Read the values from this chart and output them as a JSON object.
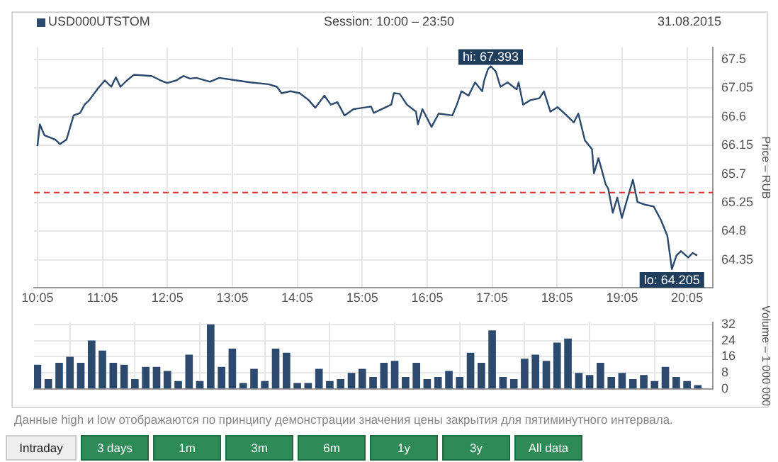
{
  "chart_data": [
    {
      "type": "line",
      "title": "USD000UTSTOM",
      "subtitle": "Session: 10:00 – 23:50",
      "ylabel": "Price – RUB",
      "color": "#2c4a6e",
      "marker": "none",
      "line_style": "solid",
      "grid": true,
      "x": [
        10.083,
        10.12,
        10.19,
        10.36,
        10.43,
        10.53,
        10.64,
        10.74,
        10.81,
        10.88,
        11.01,
        11.12,
        11.22,
        11.29,
        11.36,
        11.46,
        11.57,
        11.84,
        11.98,
        12.08,
        12.22,
        12.33,
        12.43,
        12.53,
        12.74,
        12.88,
        13.15,
        13.36,
        13.64,
        13.77,
        13.84,
        13.98,
        14.12,
        14.26,
        14.36,
        14.5,
        14.6,
        14.7,
        14.81,
        14.95,
        15.22,
        15.26,
        15.53,
        15.57,
        15.66,
        15.77,
        15.91,
        15.94,
        16.01,
        16.15,
        16.26,
        16.47,
        16.54,
        16.61,
        16.72,
        16.82,
        16.93,
        16.96,
        17.02,
        17.06,
        17.14,
        17.21,
        17.32,
        17.46,
        17.49,
        17.56,
        17.67,
        17.81,
        17.88,
        17.98,
        18.09,
        18.23,
        18.34,
        18.41,
        18.51,
        18.62,
        18.65,
        18.72,
        18.83,
        18.87,
        18.94,
        19.01,
        19.08,
        19.15,
        19.25,
        19.32,
        19.43,
        19.57,
        19.68,
        19.78,
        19.85,
        19.92,
        19.99,
        20.1,
        20.17,
        20.24
      ],
      "values": [
        66.14,
        66.48,
        66.31,
        66.24,
        66.17,
        66.24,
        66.62,
        66.66,
        66.79,
        66.86,
        67.04,
        67.17,
        67.07,
        67.22,
        67.07,
        67.17,
        67.26,
        67.24,
        67.17,
        67.13,
        67.17,
        67.24,
        67.2,
        67.21,
        67.15,
        67.21,
        67.17,
        67.14,
        67.11,
        67.07,
        66.97,
        67.0,
        66.97,
        66.86,
        66.74,
        66.93,
        66.79,
        66.83,
        66.62,
        66.72,
        66.76,
        66.66,
        66.79,
        66.97,
        66.96,
        66.79,
        66.68,
        66.48,
        66.72,
        66.44,
        66.65,
        66.62,
        66.79,
        67.0,
        66.93,
        67.14,
        67.0,
        67.17,
        67.35,
        67.393,
        67.31,
        67.07,
        67.14,
        67.03,
        67.14,
        66.79,
        66.86,
        66.89,
        67.0,
        66.68,
        66.75,
        66.62,
        66.51,
        66.65,
        66.23,
        66.09,
        65.71,
        65.95,
        65.54,
        65.47,
        65.09,
        65.33,
        65.01,
        65.26,
        65.61,
        65.26,
        65.22,
        65.19,
        64.98,
        64.73,
        64.205,
        64.42,
        64.49,
        64.39,
        64.46,
        64.42
      ],
      "xlim": [
        10.03,
        20.48
      ],
      "xticks": [
        {
          "value": 10.0833,
          "label": "10:05"
        },
        {
          "value": 11.0833,
          "label": "11:05"
        },
        {
          "value": 12.0833,
          "label": "12:05"
        },
        {
          "value": 13.0833,
          "label": "13:05"
        },
        {
          "value": 14.0833,
          "label": "14:05"
        },
        {
          "value": 15.0833,
          "label": "15:05"
        },
        {
          "value": 16.0833,
          "label": "16:05"
        },
        {
          "value": 17.0833,
          "label": "17:05"
        },
        {
          "value": 18.0833,
          "label": "18:05"
        },
        {
          "value": 19.0833,
          "label": "19:05"
        },
        {
          "value": 20.0833,
          "label": "20:05"
        }
      ],
      "ylim": [
        63.91,
        67.69
      ],
      "yticks": [
        64.35,
        64.8,
        65.25,
        65.7,
        66.15,
        66.6,
        67.05,
        67.5
      ],
      "ref_lines": [
        {
          "axis": "y",
          "value": 65.41,
          "color": "#e03030",
          "line_style": "dashed"
        }
      ],
      "annotations": [
        "31.08.2015",
        {
          "text": "hi: 67.393",
          "x": 17.06,
          "y": 67.393
        },
        {
          "text": "lo: 64.205",
          "x": 19.85,
          "y": 64.205
        }
      ]
    },
    {
      "type": "bar",
      "ylabel": "Volume – 1 000 000",
      "color": "#2c4a6e",
      "grid": true,
      "tick_labels": "y",
      "x": [
        10.083,
        10.25,
        10.417,
        10.583,
        10.75,
        10.917,
        11.083,
        11.25,
        11.417,
        11.583,
        11.75,
        11.917,
        12.083,
        12.25,
        12.417,
        12.583,
        12.75,
        12.917,
        13.083,
        13.25,
        13.417,
        13.583,
        13.75,
        13.917,
        14.083,
        14.25,
        14.417,
        14.583,
        14.75,
        14.917,
        15.083,
        15.25,
        15.417,
        15.583,
        15.75,
        15.917,
        16.083,
        16.25,
        16.417,
        16.583,
        16.75,
        16.917,
        17.083,
        17.25,
        17.417,
        17.583,
        17.75,
        17.917,
        18.083,
        18.25,
        18.417,
        18.583,
        18.75,
        18.917,
        19.083,
        19.25,
        19.417,
        19.583,
        19.75,
        19.917,
        20.083,
        20.25
      ],
      "values": [
        12,
        5,
        13,
        16,
        13,
        24,
        19,
        13,
        12,
        5,
        11,
        11,
        9,
        4,
        17,
        4,
        32,
        11,
        20,
        3,
        10,
        4,
        20,
        18,
        3,
        3,
        10,
        4,
        5,
        8,
        10,
        6,
        13,
        14,
        6,
        13,
        5,
        6,
        9,
        6,
        18,
        13,
        29,
        6,
        5,
        15,
        17,
        14,
        23,
        25,
        8,
        7,
        13,
        6,
        8,
        5,
        7,
        4,
        11,
        6,
        4,
        2
      ],
      "xlim": [
        10.03,
        20.48
      ],
      "xticks": [
        {
          "value": 10.0833,
          "label": null
        },
        {
          "value": 11.0833,
          "label": null
        },
        {
          "value": 12.0833,
          "label": null
        },
        {
          "value": 13.0833,
          "label": null
        },
        {
          "value": 14.0833,
          "label": null
        },
        {
          "value": 15.0833,
          "label": null
        },
        {
          "value": 16.0833,
          "label": null
        },
        {
          "value": 17.0833,
          "label": null
        },
        {
          "value": 18.0833,
          "label": null
        },
        {
          "value": 19.0833,
          "label": null
        },
        {
          "value": 20.0833,
          "label": null
        }
      ],
      "ylim": [
        0,
        33
      ],
      "yticks": [
        0,
        8,
        16,
        24,
        32
      ],
      "annotations": [
        "Данные high и low отображаются по принципу демонстрации значения цены закрытия для пятиминутного интервала.",
        "Intraday",
        "3 days",
        "1m",
        "3m",
        "6m",
        "1y",
        "3y",
        "All data"
      ]
    }
  ]
}
